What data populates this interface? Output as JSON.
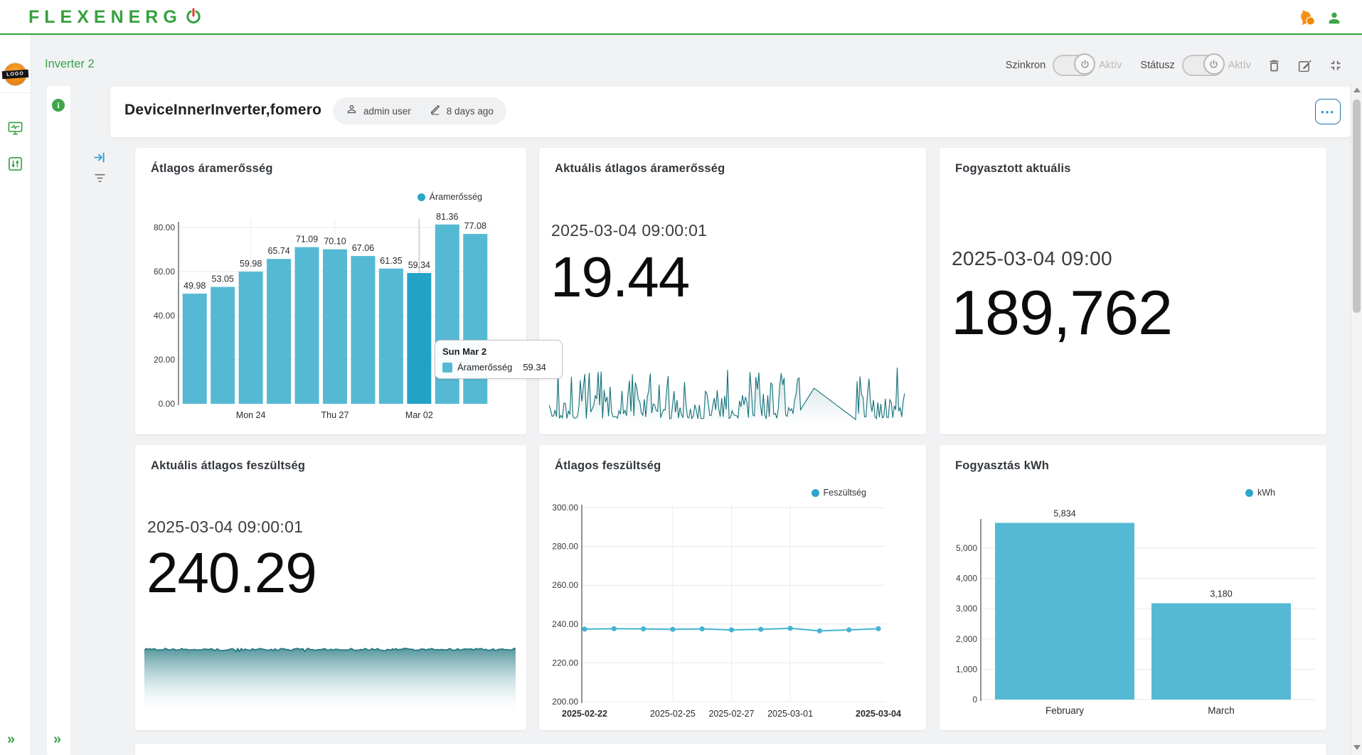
{
  "theme": {
    "green": "#35a13e",
    "accent_bar": "#55b9d3",
    "accent_bar_highlight": "#22a2c7",
    "legend_dot": "#2ba6c9",
    "spark_line": "#15717a",
    "orange": "#f59116"
  },
  "topbar": {
    "logo_text": "FLEXENERG"
  },
  "toolbar": {
    "page_title": "Inverter 2",
    "szinkron_label": "Szinkron",
    "szinkron_state": "Aktív",
    "statusz_label": "Státusz",
    "statusz_state": "Aktív"
  },
  "sidebar": {
    "logo_badge": "LOGO",
    "expand_chevron": "»",
    "info_glyph": "i"
  },
  "panel": {
    "expand_chevron": "»"
  },
  "dashboard_header": {
    "title": "DeviceInnerInverter,fomero",
    "owner": "admin user",
    "last_edited": "8 days ago",
    "menu_button": "•••"
  },
  "widgets": {
    "avg_current": {
      "title": "Átlagos áramerősség",
      "legend": "Áramerősség",
      "chart_data": {
        "type": "bar",
        "series_name": "Áramerősség",
        "values": [
          49.98,
          53.05,
          59.98,
          65.74,
          71.09,
          70.1,
          67.06,
          61.35,
          59.34,
          81.36,
          77.08
        ],
        "highlighted_index": 8,
        "x_tick_labels": [
          "Mon 24",
          "Thu 27",
          "Mar 02"
        ],
        "x_tick_positions": [
          2,
          5,
          8
        ],
        "y_ticks": [
          "0.00",
          "20.00",
          "40.00",
          "60.00",
          "80.00"
        ],
        "ylim": [
          0,
          80
        ],
        "bar_color": "#55b9d3",
        "bar_color_highlight": "#22a2c7"
      },
      "tooltip": {
        "title": "Sun Mar 2",
        "series": "Áramerősség",
        "value": "59.34"
      }
    },
    "current_avg_current": {
      "title": "Aktuális átlagos áramerősség",
      "timestamp": "2025-03-04 09:00:01",
      "value": "19.44",
      "chart_data": {
        "type": "area",
        "series_name": "Áramerősség",
        "style": "noisy high-frequency sparkline",
        "y_est_range": [
          3,
          45
        ],
        "features": "smooth linear decline to baseline near 75-86% of width, tall spike clusters elsewhere",
        "line_color": "#15717a",
        "render_seed": 7,
        "points": 240
      }
    },
    "consumed_current": {
      "title": "Fogyasztott aktuális",
      "timestamp": "2025-03-04 09:00",
      "value": "189,762"
    },
    "current_avg_voltage": {
      "title": "Aktuális átlagos feszültség",
      "timestamp": "2025-03-04 09:00:01",
      "value": "240.29",
      "chart_data": {
        "type": "area",
        "style": "nearly flat noisy top edge with vertical teal-to-white gradient fill",
        "value_est": 240,
        "line_color": "#1e747d",
        "render_seed": 3,
        "points": 200
      }
    },
    "avg_voltage": {
      "title": "Átlagos feszültség",
      "legend": "Feszültség",
      "chart_data": {
        "type": "line",
        "series_name": "Feszültség",
        "values": [
          237.4,
          237.6,
          237.5,
          237.3,
          237.5,
          237.0,
          237.3,
          237.8,
          236.5,
          237.0,
          237.6
        ],
        "x_tick_labels": [
          "2025-02-22",
          "2025-02-25",
          "2025-02-27",
          "2025-03-01",
          "2025-03-04"
        ],
        "x_tick_positions": [
          0,
          3,
          5,
          7,
          10
        ],
        "bold_tick_indices": [
          0,
          4
        ],
        "y_ticks": [
          "200.00",
          "220.00",
          "240.00",
          "260.00",
          "280.00",
          "300.00"
        ],
        "ylim": [
          200,
          300
        ],
        "line_color": "#45b4d2"
      }
    },
    "consumption_kwh": {
      "title": "Fogyasztás kWh",
      "legend": "kWh",
      "chart_data": {
        "type": "bar",
        "series_name": "kWh",
        "categories": [
          "February",
          "March"
        ],
        "values": [
          5834,
          3180
        ],
        "value_labels": [
          "5,834",
          "3,180"
        ],
        "y_ticks": [
          "0",
          "1,000",
          "2,000",
          "3,000",
          "4,000",
          "5,000"
        ],
        "ylim": [
          0,
          5834
        ],
        "bar_color": "#55b9d3"
      }
    }
  }
}
